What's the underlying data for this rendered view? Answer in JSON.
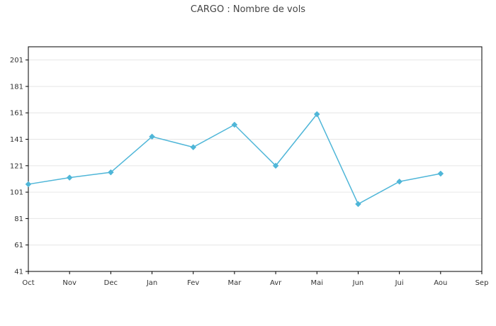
{
  "colors": {
    "series": "#4fb6d8",
    "grid": "#e6e6e6",
    "axis": "#000000",
    "text": "#333333"
  },
  "chart_data": {
    "type": "line",
    "title": "CARGO : Nombre de vols",
    "xlabel": "",
    "ylabel": "",
    "categories": [
      "Oct",
      "Nov",
      "Dec",
      "Jan",
      "Fev",
      "Mar",
      "Avr",
      "Mai",
      "Jun",
      "Jui",
      "Aou",
      "Sep"
    ],
    "series": [
      {
        "values": [
          107,
          112,
          116,
          143,
          135,
          152,
          121,
          160,
          92,
          109,
          115,
          null
        ]
      }
    ],
    "ylim": [
      41,
      211
    ],
    "yticks": [
      41,
      61,
      81,
      101,
      121,
      141,
      161,
      181,
      201
    ],
    "grid": true,
    "markers": "diamond"
  }
}
